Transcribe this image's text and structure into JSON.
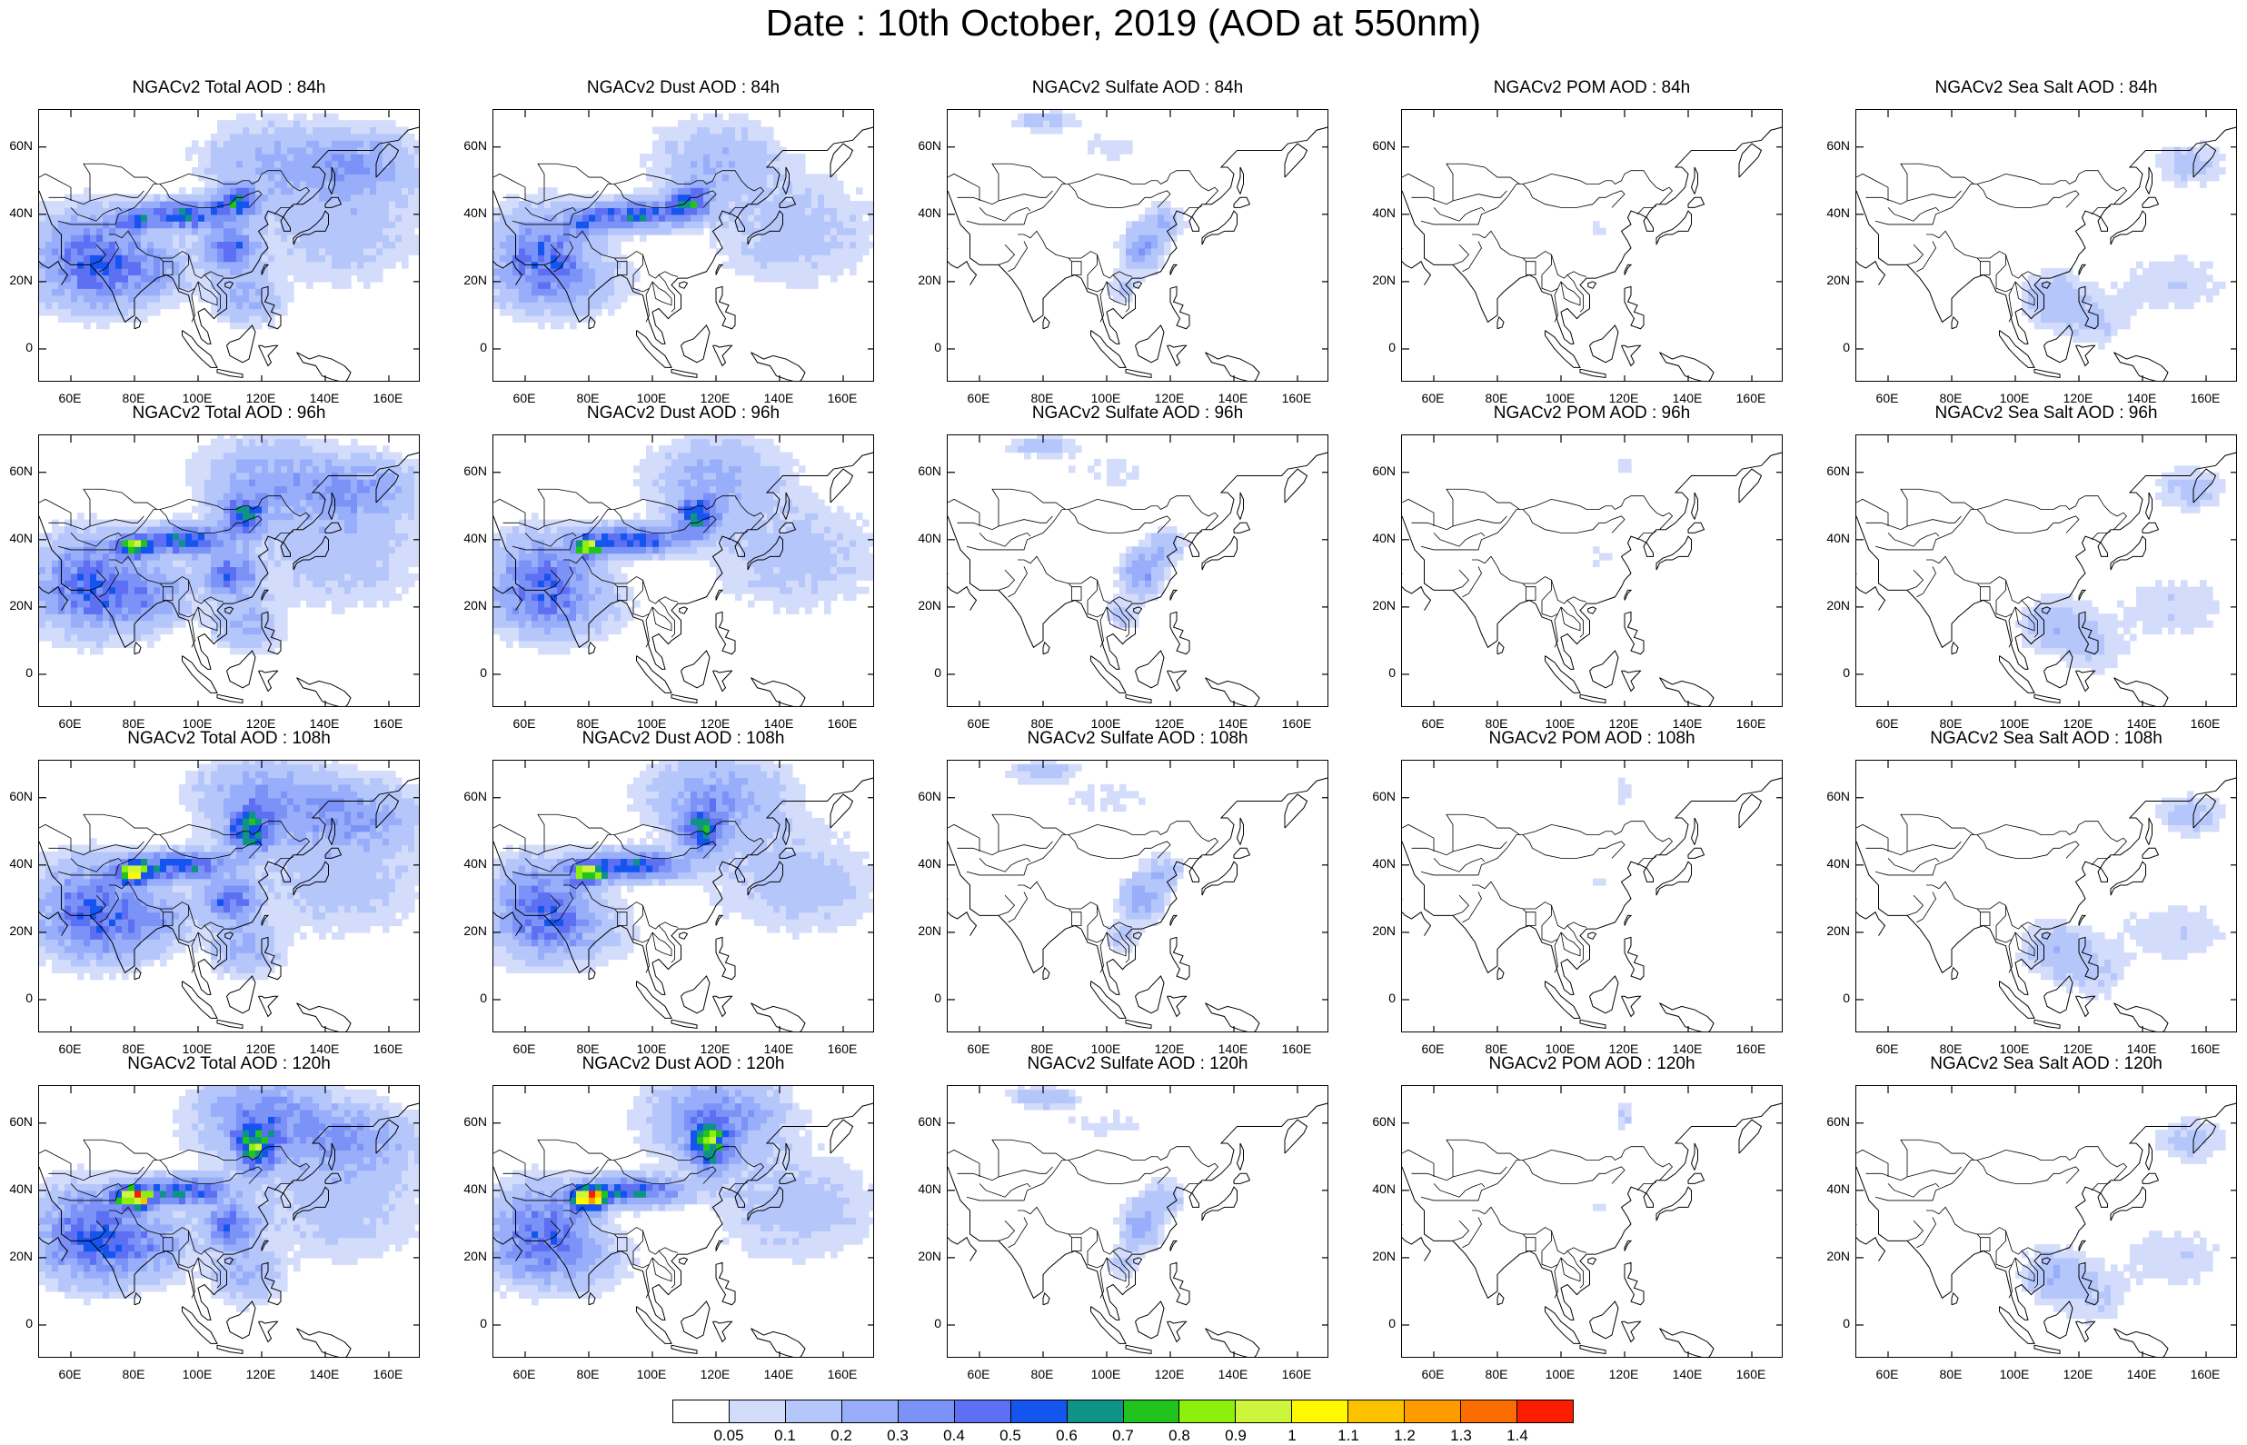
{
  "title": "Date : 10th October, 2019 (AOD at 550nm)",
  "panel_titles": [
    [
      "NGACv2 Total AOD : 84h",
      "NGACv2 Dust AOD : 84h",
      "NGACv2 Sulfate AOD : 84h",
      "NGACv2 POM AOD : 84h",
      "NGACv2 Sea Salt AOD : 84h"
    ],
    [
      "NGACv2 Total AOD : 96h",
      "NGACv2 Dust AOD : 96h",
      "NGACv2 Sulfate AOD : 96h",
      "NGACv2 POM AOD : 96h",
      "NGACv2 Sea Salt AOD : 96h"
    ],
    [
      "NGACv2 Total AOD : 108h",
      "NGACv2 Dust AOD : 108h",
      "NGACv2 Sulfate AOD : 108h",
      "NGACv2 POM AOD : 108h",
      "NGACv2 Sea Salt AOD : 108h"
    ],
    [
      "NGACv2 Total AOD : 120h",
      "NGACv2 Dust AOD : 120h",
      "NGACv2 Sulfate AOD : 120h",
      "NGACv2 POM AOD : 120h",
      "NGACv2 Sea Salt  AOD : 120h"
    ]
  ],
  "lat_labels": [
    "60N",
    "40N",
    "20N",
    "0"
  ],
  "lon_labels": [
    "60E",
    "80E",
    "100E",
    "120E",
    "140E",
    "160E"
  ],
  "colorbar": {
    "labels": [
      "0.05",
      "0.1",
      "0.2",
      "0.3",
      "0.4",
      "0.5",
      "0.6",
      "0.7",
      "0.8",
      "0.9",
      "1",
      "1.1",
      "1.2",
      "1.3",
      "1.4"
    ],
    "colors": [
      "#ffffff",
      "#d3dcfb",
      "#b5c6fa",
      "#98aefa",
      "#7b92f7",
      "#5d6ff2",
      "#1455f0",
      "#109387",
      "#21c41d",
      "#8df00c",
      "#cdf53c",
      "#fff800",
      "#fcc200",
      "#fd9b00",
      "#fc6d00",
      "#fb1d00"
    ]
  }
}
